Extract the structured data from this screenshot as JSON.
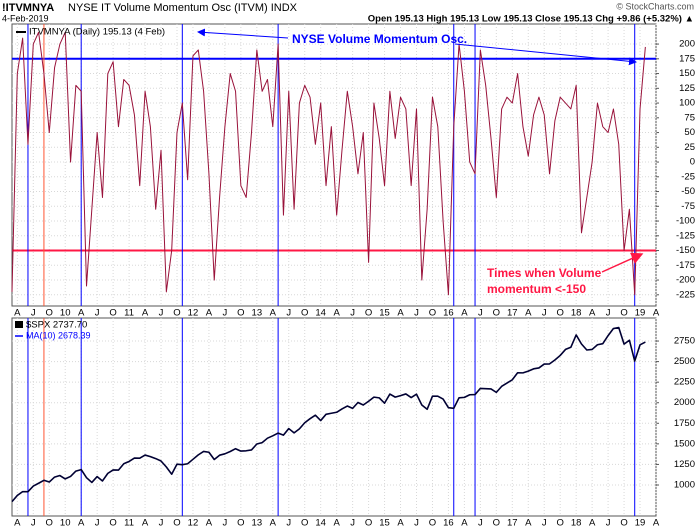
{
  "header": {
    "symbol": "!ITVMNYA",
    "name": "NYSE IT Volume Momentum Osc (ITVM) INDX",
    "date": "4-Feb-2019",
    "quote": "Open 195.13  High 195.13  Low 195.13  Close 195.13  Chg +9.86 (+5.32%) ▲",
    "credit": "© StockCharts.com"
  },
  "chart_data": [
    {
      "type": "line",
      "x": [
        "2009-03",
        "2009-04",
        "2009-05",
        "2009-06",
        "2009-07",
        "2009-08",
        "2009-09",
        "2009-10",
        "2009-11",
        "2009-12",
        "2010-01",
        "2010-02",
        "2010-03",
        "2010-04",
        "2010-05",
        "2010-06",
        "2010-07",
        "2010-08",
        "2010-09",
        "2010-10",
        "2010-11",
        "2010-12",
        "2011-01",
        "2011-02",
        "2011-03",
        "2011-04",
        "2011-05",
        "2011-06",
        "2011-07",
        "2011-08",
        "2011-09",
        "2011-10",
        "2011-11",
        "2011-12",
        "2012-01",
        "2012-02",
        "2012-03",
        "2012-04",
        "2012-05",
        "2012-06",
        "2012-07",
        "2012-08",
        "2012-09",
        "2012-10",
        "2012-11",
        "2012-12",
        "2013-01",
        "2013-02",
        "2013-03",
        "2013-04",
        "2013-05",
        "2013-06",
        "2013-07",
        "2013-08",
        "2013-09",
        "2013-10",
        "2013-11",
        "2013-12",
        "2014-01",
        "2014-02",
        "2014-03",
        "2014-04",
        "2014-05",
        "2014-06",
        "2014-07",
        "2014-08",
        "2014-09",
        "2014-10",
        "2014-11",
        "2014-12",
        "2015-01",
        "2015-02",
        "2015-03",
        "2015-04",
        "2015-05",
        "2015-06",
        "2015-07",
        "2015-08",
        "2015-09",
        "2015-10",
        "2015-11",
        "2015-12",
        "2016-01",
        "2016-02",
        "2016-03",
        "2016-04",
        "2016-05",
        "2016-06",
        "2016-07",
        "2016-08",
        "2016-09",
        "2016-10",
        "2016-11",
        "2016-12",
        "2017-01",
        "2017-02",
        "2017-03",
        "2017-04",
        "2017-05",
        "2017-06",
        "2017-07",
        "2017-08",
        "2017-09",
        "2017-10",
        "2017-11",
        "2017-12",
        "2018-01",
        "2018-02",
        "2018-03",
        "2018-04",
        "2018-05",
        "2018-06",
        "2018-07",
        "2018-08",
        "2018-09",
        "2018-10",
        "2018-11",
        "2018-12",
        "2019-01",
        "2019-02"
      ],
      "series": [
        {
          "name": "ITVMNYA (Daily) 195.13 (4 Feb)",
          "color": "#99123a",
          "values": [
            -220,
            150,
            210,
            30,
            200,
            220,
            150,
            50,
            160,
            200,
            220,
            0,
            130,
            120,
            -210,
            -80,
            50,
            -60,
            150,
            170,
            60,
            140,
            130,
            80,
            -40,
            120,
            60,
            -80,
            20,
            -220,
            -150,
            50,
            100,
            -30,
            180,
            190,
            120,
            -20,
            -200,
            -60,
            60,
            150,
            120,
            -40,
            -60,
            50,
            190,
            120,
            140,
            60,
            200,
            -90,
            120,
            -80,
            100,
            130,
            110,
            30,
            100,
            -40,
            60,
            -90,
            20,
            120,
            60,
            -20,
            50,
            -170,
            100,
            40,
            -40,
            120,
            40,
            110,
            90,
            -40,
            90,
            -200,
            -80,
            110,
            60,
            -100,
            -225,
            60,
            200,
            120,
            0,
            -20,
            190,
            130,
            40,
            -60,
            90,
            110,
            100,
            150,
            60,
            10,
            80,
            110,
            80,
            -20,
            70,
            110,
            100,
            90,
            130,
            -120,
            -60,
            0,
            100,
            60,
            50,
            90,
            30,
            -150,
            -80,
            -225,
            90,
            195.13
          ]
        }
      ],
      "xlim": [
        "2009-03",
        "2019-04"
      ],
      "xticks": [
        {
          "value": "2009-04",
          "label": "A"
        },
        {
          "value": "2009-07",
          "label": "J"
        },
        {
          "value": "2009-10",
          "label": "O"
        },
        {
          "value": "2010-01",
          "label": "10"
        },
        {
          "value": "2010-04",
          "label": "A"
        },
        {
          "value": "2010-07",
          "label": "J"
        },
        {
          "value": "2010-10",
          "label": "O"
        },
        {
          "value": "2011-01",
          "label": "11"
        },
        {
          "value": "2011-04",
          "label": "A"
        },
        {
          "value": "2011-07",
          "label": "J"
        },
        {
          "value": "2011-10",
          "label": "O"
        },
        {
          "value": "2012-01",
          "label": "12"
        },
        {
          "value": "2012-04",
          "label": "A"
        },
        {
          "value": "2012-07",
          "label": "J"
        },
        {
          "value": "2012-10",
          "label": "O"
        },
        {
          "value": "2013-01",
          "label": "13"
        },
        {
          "value": "2013-04",
          "label": "A"
        },
        {
          "value": "2013-07",
          "label": "J"
        },
        {
          "value": "2013-10",
          "label": "O"
        },
        {
          "value": "2014-01",
          "label": "14"
        },
        {
          "value": "2014-04",
          "label": "A"
        },
        {
          "value": "2014-07",
          "label": "J"
        },
        {
          "value": "2014-10",
          "label": "O"
        },
        {
          "value": "2015-01",
          "label": "15"
        },
        {
          "value": "2015-04",
          "label": "A"
        },
        {
          "value": "2015-07",
          "label": "J"
        },
        {
          "value": "2015-10",
          "label": "O"
        },
        {
          "value": "2016-01",
          "label": "16"
        },
        {
          "value": "2016-04",
          "label": "A"
        },
        {
          "value": "2016-07",
          "label": "J"
        },
        {
          "value": "2016-10",
          "label": "O"
        },
        {
          "value": "2017-01",
          "label": "17"
        },
        {
          "value": "2017-04",
          "label": "A"
        },
        {
          "value": "2017-07",
          "label": "J"
        },
        {
          "value": "2017-10",
          "label": "O"
        },
        {
          "value": "2018-01",
          "label": "18"
        },
        {
          "value": "2018-04",
          "label": "A"
        },
        {
          "value": "2018-07",
          "label": "J"
        },
        {
          "value": "2018-10",
          "label": "O"
        },
        {
          "value": "2019-01",
          "label": "19"
        },
        {
          "value": "2019-04",
          "label": "A"
        }
      ],
      "ylim": [
        -244,
        234
      ],
      "yticks": [
        200,
        175,
        150,
        125,
        100,
        75,
        50,
        25,
        0,
        -25,
        -50,
        -75,
        -100,
        -125,
        -150,
        -175,
        -200,
        -225
      ],
      "grid": true,
      "hlines": [
        {
          "value": 175,
          "color": "#0000ff"
        },
        {
          "value": -150,
          "color": "#ff1744"
        }
      ],
      "vlines": [
        {
          "x": "2009-06",
          "color": "#0000ff"
        },
        {
          "x": "2009-09",
          "color": "#ff5533"
        },
        {
          "x": "2010-04",
          "color": "#0000ff"
        },
        {
          "x": "2011-11",
          "color": "#0000ff"
        },
        {
          "x": "2013-05",
          "color": "#0000ff"
        },
        {
          "x": "2016-02",
          "color": "#0000ff"
        },
        {
          "x": "2016-06",
          "color": "#0000ff"
        },
        {
          "x": "2018-12",
          "color": "#0000ff"
        }
      ],
      "annotations": [
        {
          "text": "NYSE Volume Momentum Osc.",
          "color": "#0000ff"
        },
        {
          "text": [
            "Times when Volume",
            "momentum <-150"
          ],
          "color": "#ff1744"
        }
      ]
    },
    {
      "type": "line",
      "series": [
        {
          "name": "$SPX 2737.70",
          "color": "#000033",
          "values": [
            798,
            873,
            919,
            919,
            987,
            1021,
            1057,
            1036,
            1096,
            1115,
            1074,
            1104,
            1169,
            1187,
            1089,
            1031,
            1102,
            1049,
            1141,
            1183,
            1181,
            1258,
            1286,
            1327,
            1326,
            1364,
            1345,
            1321,
            1292,
            1219,
            1131,
            1253,
            1247,
            1258,
            1312,
            1366,
            1408,
            1398,
            1310,
            1362,
            1379,
            1407,
            1441,
            1412,
            1416,
            1426,
            1498,
            1515,
            1569,
            1598,
            1631,
            1606,
            1686,
            1633,
            1682,
            1757,
            1806,
            1848,
            1783,
            1859,
            1872,
            1884,
            1924,
            1960,
            1931,
            2003,
            1972,
            2018,
            2068,
            2059,
            1995,
            2105,
            2068,
            2086,
            2107,
            2063,
            2104,
            1972,
            1920,
            2079,
            2080,
            2044,
            1940,
            1932,
            2060,
            2065,
            2097,
            2099,
            2174,
            2171,
            2168,
            2126,
            2199,
            2239,
            2279,
            2364,
            2363,
            2384,
            2412,
            2423,
            2470,
            2472,
            2519,
            2575,
            2648,
            2674,
            2824,
            2714,
            2641,
            2648,
            2705,
            2718,
            2816,
            2902,
            2914,
            2712,
            2760,
            2507,
            2704,
            2737.7
          ]
        }
      ],
      "ma_legend": {
        "label": "MA(10) 2678.39",
        "color": "#0000ff"
      },
      "ylim": [
        623,
        3030
      ],
      "yticks": [
        2750,
        2500,
        2250,
        2000,
        1750,
        1500,
        1250,
        1000
      ],
      "grid": true
    }
  ]
}
